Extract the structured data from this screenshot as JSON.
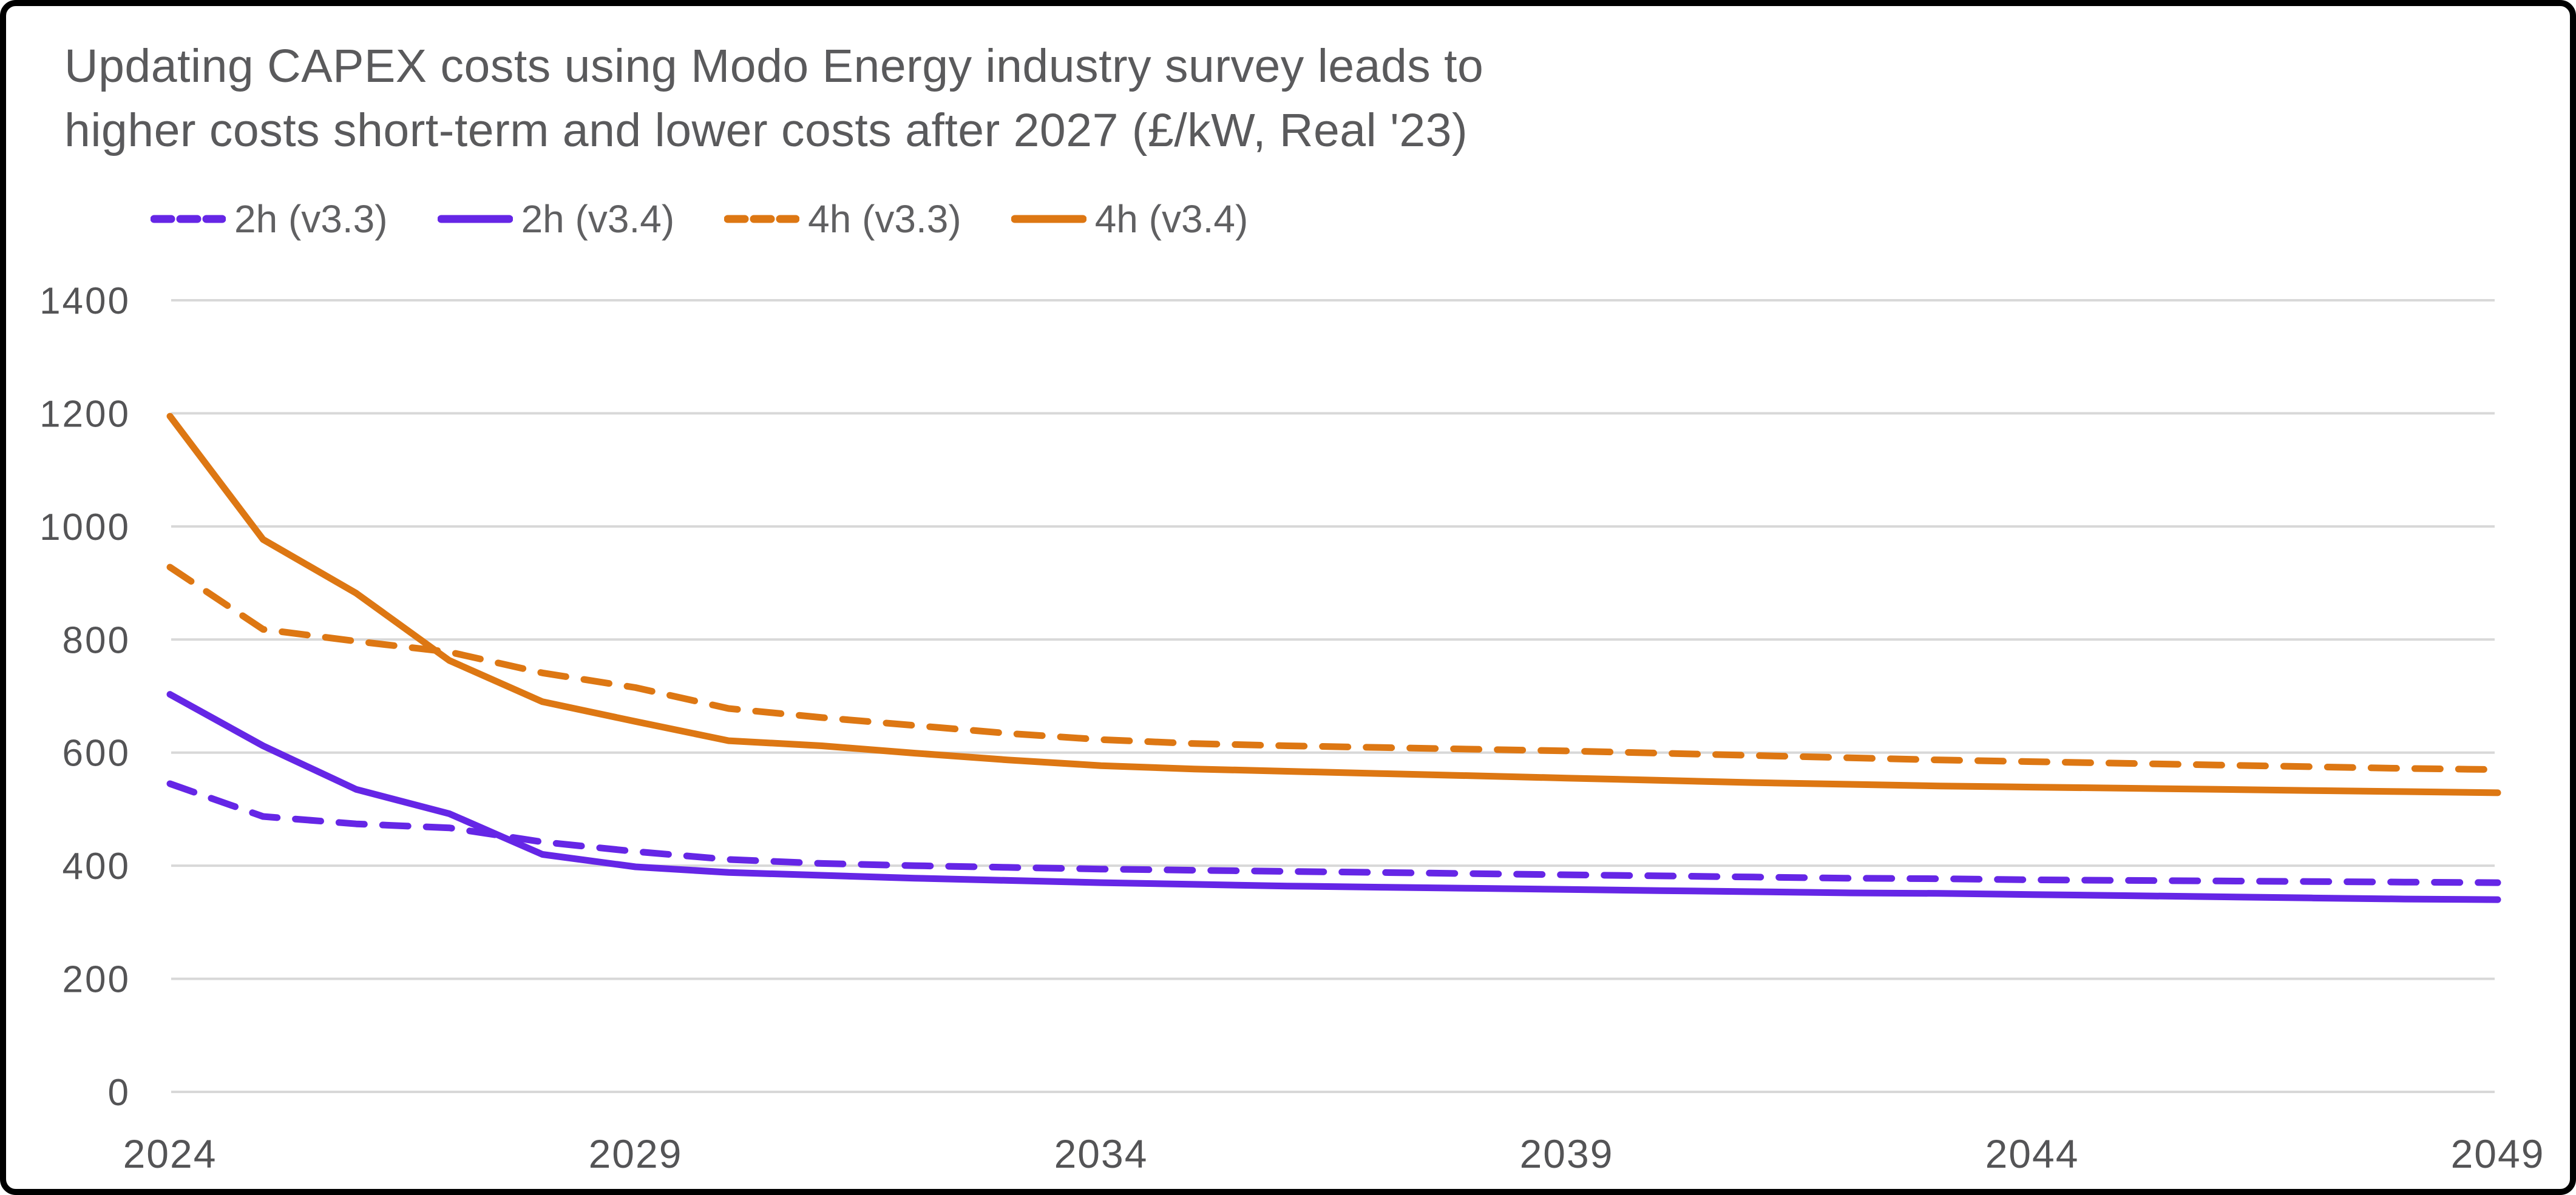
{
  "title": {
    "line1": "Updating CAPEX costs using Modo Energy industry survey leads to",
    "line2": "higher costs short-term and lower costs after 2027 (£/kW, Real '23)"
  },
  "legend": {
    "items": [
      {
        "label": "2h (v3.3)",
        "color": "#6526E6",
        "style": "dashed"
      },
      {
        "label": "2h (v3.4)",
        "color": "#6526E6",
        "style": "solid"
      },
      {
        "label": "4h (v3.3)",
        "color": "#DD7713",
        "style": "dashed"
      },
      {
        "label": "4h (v3.4)",
        "color": "#DD7713",
        "style": "solid"
      }
    ]
  },
  "chart_data": {
    "type": "line",
    "title": "Updating CAPEX costs using Modo Energy industry survey leads to higher costs short-term and lower costs after 2027 (£/kW, Real '23)",
    "xlabel": "",
    "ylabel": "£/kW, Real '23",
    "ylim": [
      0,
      1400
    ],
    "yticks": [
      0,
      200,
      400,
      600,
      800,
      1000,
      1200,
      1400
    ],
    "xticks": [
      2024,
      2029,
      2034,
      2039,
      2044,
      2049
    ],
    "grid": true,
    "legend_position": "top",
    "x": [
      2024,
      2025,
      2026,
      2027,
      2028,
      2029,
      2030,
      2031,
      2032,
      2033,
      2034,
      2035,
      2036,
      2037,
      2038,
      2039,
      2040,
      2041,
      2042,
      2043,
      2044,
      2045,
      2046,
      2047,
      2048,
      2049
    ],
    "series": [
      {
        "name": "2h (v3.3)",
        "style": "dashed",
        "color": "#6526E6",
        "values": [
          545,
          487,
          474,
          467,
          442,
          425,
          411,
          404,
          400,
          397,
          394,
          392,
          390,
          388,
          386,
          384,
          382,
          380,
          378,
          377,
          375,
          374,
          373,
          372,
          371,
          370
        ]
      },
      {
        "name": "2h (v3.4)",
        "style": "solid",
        "color": "#6526E6",
        "values": [
          703,
          612,
          535,
          492,
          420,
          398,
          388,
          383,
          378,
          374,
          370,
          367,
          364,
          362,
          360,
          358,
          356,
          354,
          352,
          351,
          349,
          347,
          345,
          343,
          341,
          340
        ]
      },
      {
        "name": "4h (v3.3)",
        "style": "dashed",
        "color": "#DD7713",
        "values": [
          928,
          818,
          797,
          778,
          741,
          715,
          678,
          662,
          648,
          634,
          623,
          616,
          612,
          609,
          606,
          603,
          599,
          595,
          591,
          587,
          584,
          581,
          578,
          575,
          572,
          570
        ]
      },
      {
        "name": "4h (v3.4)",
        "style": "solid",
        "color": "#DD7713",
        "values": [
          1195,
          977,
          882,
          763,
          690,
          655,
          621,
          612,
          599,
          587,
          577,
          571,
          567,
          563,
          559,
          555,
          551,
          547,
          544,
          541,
          539,
          537,
          535,
          533,
          531,
          529
        ]
      }
    ]
  },
  "colors": {
    "background": "#FFFFFF",
    "frame": "#000000",
    "grid": "#D8D8D8",
    "axis_text": "#545456",
    "title_text": "#5A5A5C",
    "legend_text": "#606062",
    "purple": "#6526E6",
    "orange": "#DD7713"
  }
}
